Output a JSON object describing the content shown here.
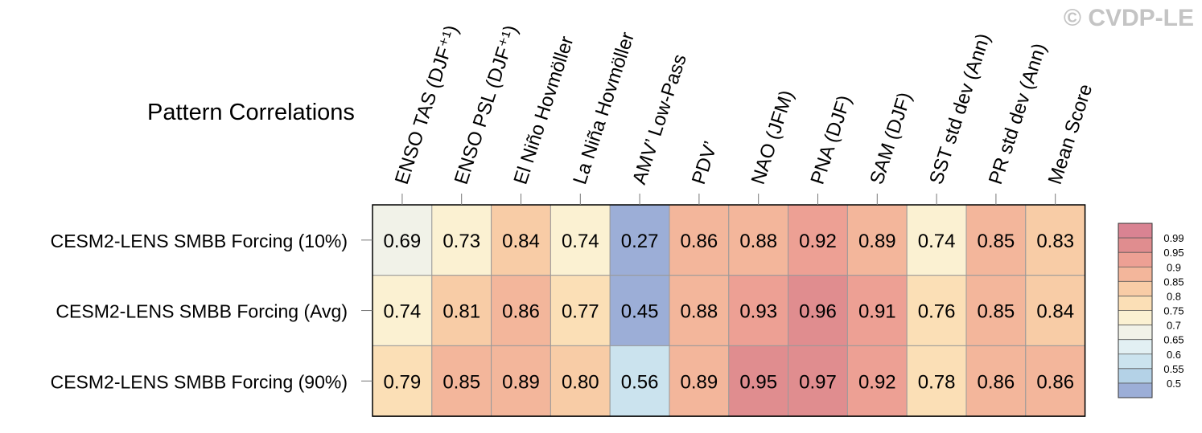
{
  "watermark": "© CVDP-LE",
  "chart_data": {
    "type": "heatmap",
    "title": "Pattern Correlations",
    "columns": [
      "ENSO TAS (DJF⁺¹)",
      "ENSO PSL (DJF⁺¹)",
      "El Niño Hovmöller",
      "La Niña Hovmöller",
      "AMV’ Low-Pass",
      "PDV’",
      "NAO (JFM)",
      "PNA (DJF)",
      "SAM (DJF)",
      "SST std dev (Ann)",
      "PR std dev (Ann)",
      "Mean Score"
    ],
    "rows": [
      "CESM2-LENS SMBB Forcing (10%)",
      "CESM2-LENS SMBB Forcing (Avg)",
      "CESM2-LENS SMBB Forcing (90%)"
    ],
    "values": [
      [
        0.69,
        0.73,
        0.84,
        0.74,
        0.27,
        0.86,
        0.88,
        0.92,
        0.89,
        0.74,
        0.85,
        0.83
      ],
      [
        0.74,
        0.81,
        0.86,
        0.77,
        0.45,
        0.88,
        0.93,
        0.96,
        0.91,
        0.76,
        0.85,
        0.84
      ],
      [
        0.79,
        0.85,
        0.89,
        0.8,
        0.56,
        0.89,
        0.95,
        0.97,
        0.92,
        0.78,
        0.86,
        0.86
      ]
    ],
    "labels": [
      [
        "0.69",
        "0.73",
        "0.84",
        "0.74",
        "0.27",
        "0.86",
        "0.88",
        "0.92",
        "0.89",
        "0.74",
        "0.85",
        "0.83"
      ],
      [
        "0.74",
        "0.81",
        "0.86",
        "0.77",
        "0.45",
        "0.88",
        "0.93",
        "0.96",
        "0.91",
        "0.76",
        "0.85",
        "0.84"
      ],
      [
        "0.79",
        "0.85",
        "0.89",
        "0.80",
        "0.56",
        "0.89",
        "0.95",
        "0.97",
        "0.92",
        "0.78",
        "0.86",
        "0.86"
      ]
    ],
    "colorbar": {
      "ticks": [
        "0.99",
        "0.95",
        "0.9",
        "0.85",
        "0.8",
        "0.75",
        "0.7",
        "0.65",
        "0.6",
        "0.55",
        "0.5"
      ],
      "thresholds": [
        0.99,
        0.95,
        0.9,
        0.85,
        0.8,
        0.75,
        0.7,
        0.65,
        0.6,
        0.55,
        0.5
      ],
      "colors": [
        "#d98392",
        "#e08d8f",
        "#eda094",
        "#f3b69b",
        "#f8cca6",
        "#fbdfb6",
        "#fbf1d2",
        "#f1f2e8",
        "#e2f0f3",
        "#cbe3ee",
        "#b4d2e7",
        "#9caed7"
      ]
    }
  }
}
